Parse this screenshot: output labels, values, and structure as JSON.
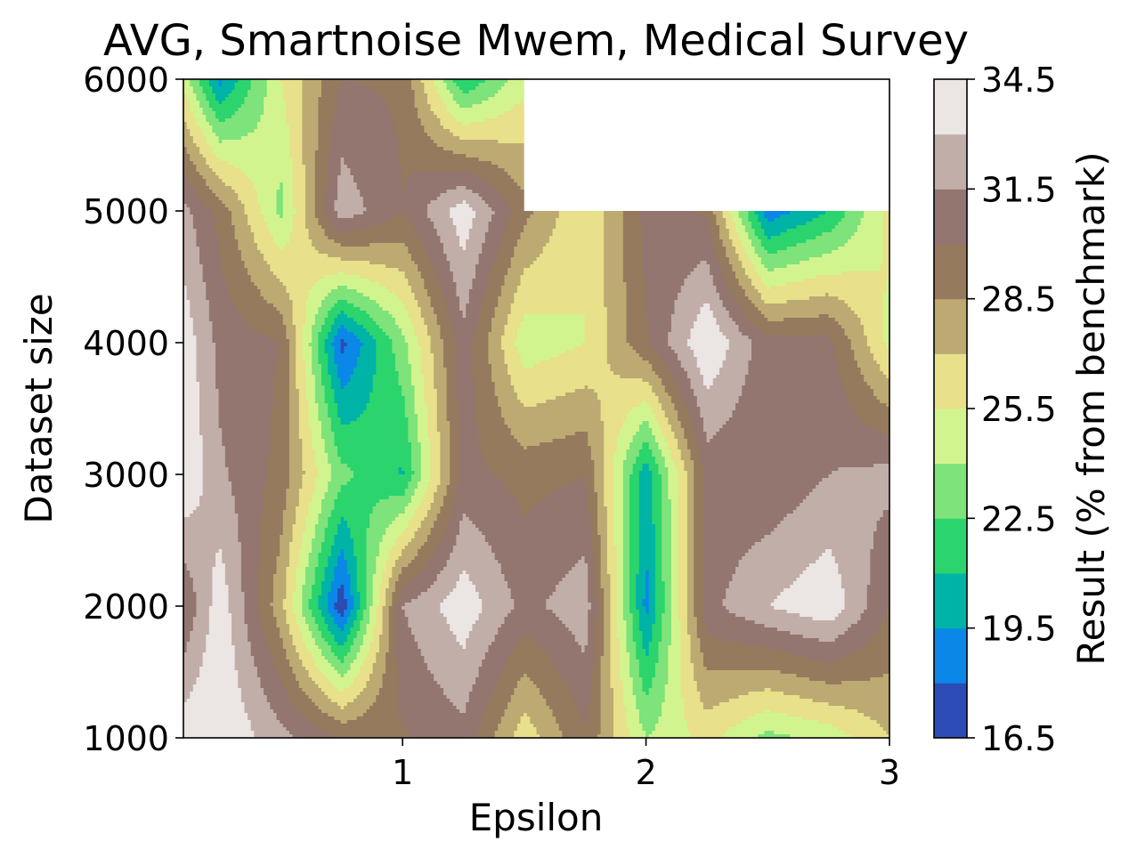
{
  "chart_data": {
    "type": "heatmap",
    "title": "AVG, Smartnoise Mwem, Medical Survey",
    "xlabel": "Epsilon",
    "ylabel": "Dataset size",
    "colorbar_label": "Result (% from benchmark)",
    "xlim": [
      0.1,
      3.0
    ],
    "ylim": [
      1000,
      6000
    ],
    "x_ticks": [
      "1",
      "2",
      "3"
    ],
    "y_ticks": [
      "1000",
      "2000",
      "3000",
      "4000",
      "5000",
      "6000"
    ],
    "colorbar_ticks": [
      "16.5",
      "19.5",
      "22.5",
      "25.5",
      "28.5",
      "31.5",
      "34.5"
    ],
    "colorbar_range": [
      16.5,
      34.5
    ],
    "levels": [
      16.5,
      18.0,
      19.5,
      21.0,
      22.5,
      24.0,
      25.5,
      27.0,
      28.5,
      30.0,
      31.5,
      33.0,
      34.5
    ],
    "level_colors": [
      "#2c4bb5",
      "#0a87e7",
      "#00b3a7",
      "#2bd46c",
      "#7de37a",
      "#d2f48f",
      "#e8e08a",
      "#bcaa72",
      "#957a5e",
      "#93766f",
      "#c1aea9",
      "#ebe5e3"
    ],
    "grid_x": [
      0.1,
      0.25,
      0.5,
      0.75,
      1.0,
      1.25,
      1.5,
      1.75,
      2.0,
      2.25,
      2.5,
      2.75,
      3.0
    ],
    "grid_y": [
      1000,
      2000,
      3000,
      4000,
      5000,
      6000
    ],
    "values": [
      [
        34.0,
        34.5,
        32.0,
        30.0,
        29.8,
        31.0,
        26.0,
        29.8,
        24.0,
        26.0,
        23.5,
        24.5,
        27.0
      ],
      [
        30.0,
        34.0,
        27.5,
        16.8,
        31.5,
        34.0,
        31.0,
        32.5,
        19.0,
        31.0,
        33.0,
        34.2,
        30.0
      ],
      [
        34.5,
        31.8,
        29.5,
        23.0,
        20.8,
        30.5,
        29.5,
        30.0,
        20.0,
        30.5,
        30.2,
        31.5,
        32.0
      ],
      [
        34.0,
        31.0,
        30.0,
        17.5,
        23.5,
        31.0,
        24.5,
        25.5,
        29.8,
        34.5,
        30.5,
        30.5,
        25.0
      ],
      [
        32.0,
        29.5,
        23.5,
        32.5,
        30.0,
        34.0,
        29.0,
        25.5,
        30.5,
        29.8,
        18.5,
        21.0,
        26.0
      ],
      [
        25.0,
        19.0,
        25.5,
        30.0,
        29.8,
        21.0,
        25.0,
        null,
        null,
        null,
        null,
        null,
        null
      ]
    ]
  }
}
